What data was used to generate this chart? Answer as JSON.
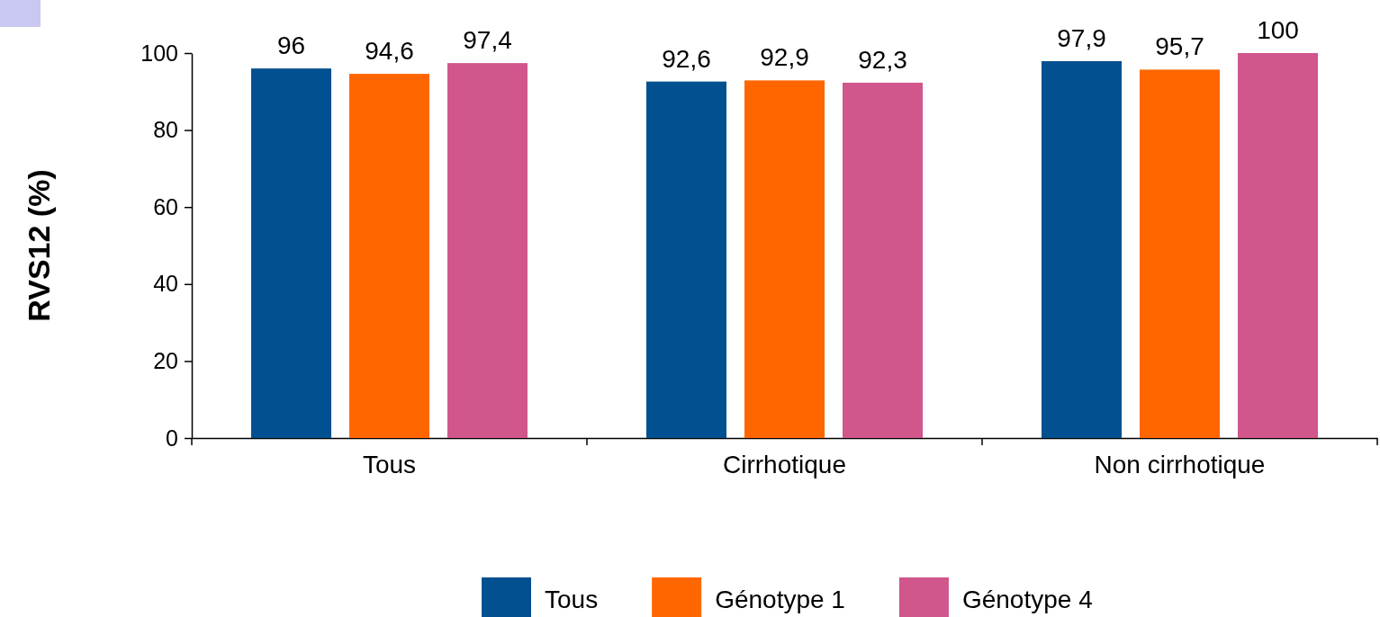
{
  "chart_data": {
    "type": "bar",
    "ylabel": "RVS12 (%)",
    "categories": [
      "Tous",
      "Cirrhotique",
      "Non cirrhotique"
    ],
    "series": [
      {
        "name": "Tous",
        "color": "#02508f",
        "values": [
          96,
          92.6,
          97.9
        ],
        "value_labels": [
          "96",
          "92,6",
          "97,9"
        ]
      },
      {
        "name": "Génotype 1",
        "color": "#ff6600",
        "values": [
          94.6,
          92.9,
          95.7
        ],
        "value_labels": [
          "94,6",
          "92,9",
          "95,7"
        ]
      },
      {
        "name": "Génotype 4",
        "color": "#d0568c",
        "values": [
          97.4,
          92.3,
          100
        ],
        "value_labels": [
          "97,4",
          "92,3",
          "100"
        ]
      }
    ],
    "ylim": [
      0,
      100
    ],
    "yticks": [
      0,
      20,
      40,
      60,
      80,
      100
    ],
    "grid": false,
    "legend": "bottom"
  }
}
